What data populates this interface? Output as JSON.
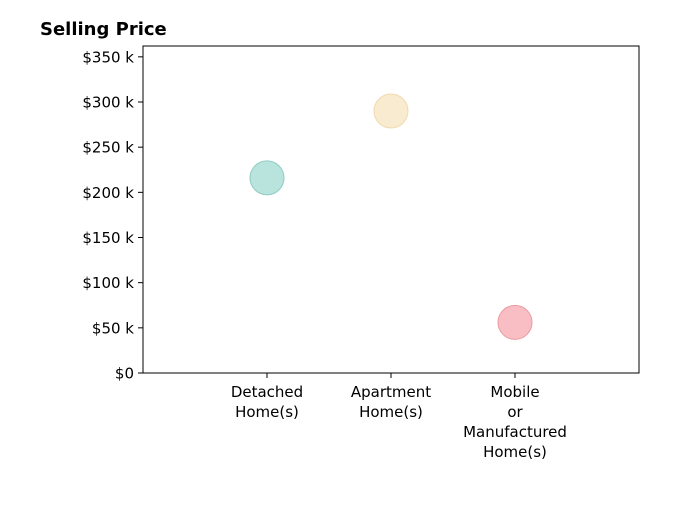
{
  "chart_data": {
    "type": "scatter",
    "title": "Selling Price",
    "xlabel": "",
    "ylabel": "",
    "categories": [
      [
        "Detached",
        "Home(s)"
      ],
      [
        "Apartment",
        "Home(s)"
      ],
      [
        "Mobile",
        "or",
        "Manufactured",
        "Home(s)"
      ]
    ],
    "values": [
      216000,
      290000,
      56000
    ],
    "y_ticks": [
      0,
      50000,
      100000,
      150000,
      200000,
      250000,
      300000,
      350000
    ],
    "y_tick_labels": [
      "$0",
      "$50 k",
      "$100 k",
      "$150 k",
      "$200 k",
      "$250 k",
      "$300 k",
      "$350 k"
    ],
    "ylim": [
      0,
      362000
    ],
    "grid": false,
    "colors": [
      "#a8dcd4",
      "#f8e6c4",
      "#f6aeb4"
    ],
    "edge_colors": [
      "#8fccc4",
      "#f0d9ae",
      "#ec9aa2"
    ]
  }
}
